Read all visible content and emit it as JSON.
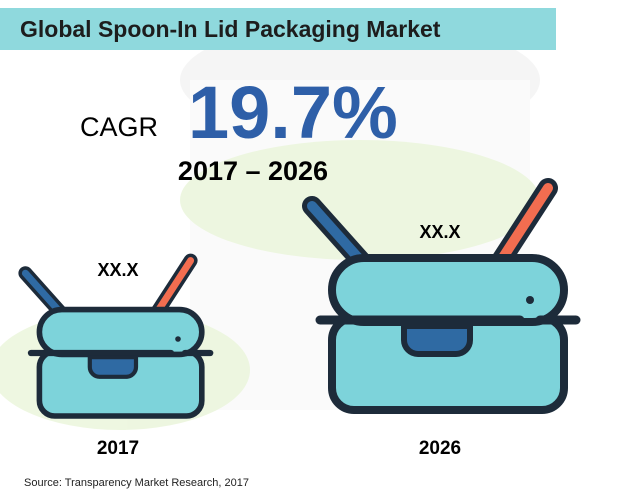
{
  "header": {
    "title": "Global Spoon-In Lid Packaging Market"
  },
  "cagr": {
    "label": "CAGR",
    "value": "19.7%",
    "period": "2017 – 2026"
  },
  "items": [
    {
      "label": "XX.X",
      "year": "2017"
    },
    {
      "label": "XX.X",
      "year": "2026"
    }
  ],
  "source": "Source: Transparency Market Research, 2017"
}
